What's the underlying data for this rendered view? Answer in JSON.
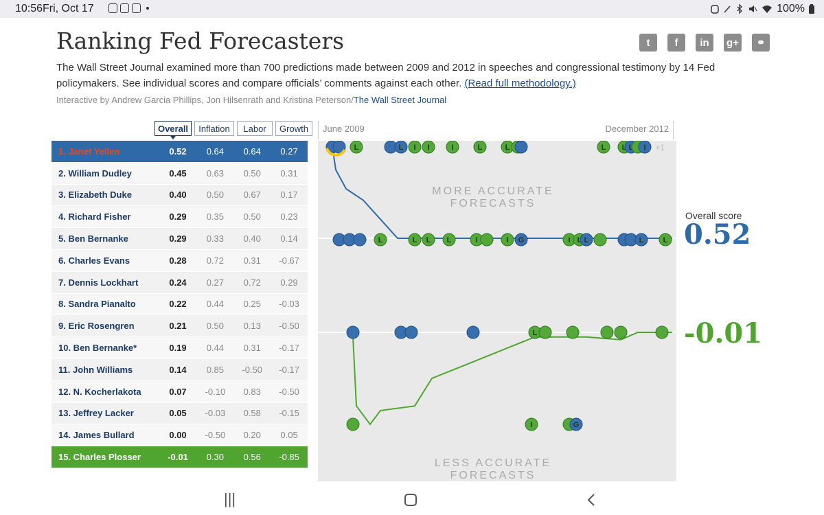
{
  "status": {
    "time": "10:56",
    "date": "Fri, Oct 17",
    "battery": "100%"
  },
  "page": {
    "title": "Ranking Fed Forecasters",
    "intro": "The Wall Street Journal examined more than 700 predictions made between 2009 and 2012 in speeches and congressional testimony by 14 Fed policymakers. See individual scores and compare officials’ comments against each other.",
    "methodology_link": "(Read full methodology.)",
    "credit": "Interactive by Andrew Garcia Phillips, Jon Hilsenrath and Kristina Peterson/",
    "credit_source": "The Wall Street Journal"
  },
  "share": [
    "twitter-icon",
    "facebook-icon",
    "linkedin-icon",
    "google-plus-icon",
    "link-icon"
  ],
  "share_glyphs": [
    "t",
    "f",
    "in",
    "g+",
    "⚭"
  ],
  "tabs": [
    "Overall",
    "Inflation",
    "Labor",
    "Growth"
  ],
  "rankings": [
    {
      "name": "1. Janet Yellen",
      "overall": "0.52",
      "inflation": "0.64",
      "labor": "0.64",
      "growth": "0.27"
    },
    {
      "name": "2. William Dudley",
      "overall": "0.45",
      "inflation": "0.63",
      "labor": "0.50",
      "growth": "0.31"
    },
    {
      "name": "3. Elizabeth Duke",
      "overall": "0.40",
      "inflation": "0.50",
      "labor": "0.67",
      "growth": "0.17"
    },
    {
      "name": "4. Richard Fisher",
      "overall": "0.29",
      "inflation": "0.35",
      "labor": "0.50",
      "growth": "0.23"
    },
    {
      "name": "5. Ben Bernanke",
      "overall": "0.29",
      "inflation": "0.33",
      "labor": "0.40",
      "growth": "0.14"
    },
    {
      "name": "6. Charles Evans",
      "overall": "0.28",
      "inflation": "0.72",
      "labor": "0.31",
      "growth": "-0.67"
    },
    {
      "name": "7. Dennis Lockhart",
      "overall": "0.24",
      "inflation": "0.27",
      "labor": "0.72",
      "growth": "0.29"
    },
    {
      "name": "8. Sandra Pianalto",
      "overall": "0.22",
      "inflation": "0.44",
      "labor": "0.25",
      "growth": "-0.03"
    },
    {
      "name": "9. Eric Rosengren",
      "overall": "0.21",
      "inflation": "0.50",
      "labor": "0.13",
      "growth": "-0.50"
    },
    {
      "name": "10. Ben Bernanke*",
      "overall": "0.19",
      "inflation": "0.44",
      "labor": "0.31",
      "growth": "-0.17"
    },
    {
      "name": "11. John Williams",
      "overall": "0.14",
      "inflation": "0.85",
      "labor": "-0.50",
      "growth": "-0.17"
    },
    {
      "name": "12. N. Kocherlakota",
      "overall": "0.07",
      "inflation": "-0.10",
      "labor": "0.83",
      "growth": "-0.50"
    },
    {
      "name": "13. Jeffrey Lacker",
      "overall": "0.05",
      "inflation": "-0.03",
      "labor": "0.58",
      "growth": "-0.15"
    },
    {
      "name": "14. James Bullard",
      "overall": "0.00",
      "inflation": "-0.50",
      "labor": "0.20",
      "growth": "0.05"
    },
    {
      "name": "15. Charles Plosser",
      "overall": "-0.01",
      "inflation": "0.30",
      "labor": "0.56",
      "growth": "-0.85"
    }
  ],
  "chart": {
    "start_label": "June 2009",
    "end_label": "December 2012",
    "more_accurate": "MORE ACCURATE\nFORECASTS",
    "less_accurate": "LESS ACCURATE\nFORECASTS",
    "overflow_label": "+1",
    "overall_score_label": "Overall score",
    "top_score": "0.52",
    "bottom_score": "-0.01"
  },
  "chart_data": {
    "type": "scatter",
    "time_range": [
      "June 2009",
      "December 2012"
    ],
    "series": [
      {
        "name": "Janet Yellen",
        "color": "#2e69a8",
        "overall": 0.52,
        "line": [
          [
            0,
            1
          ],
          [
            1,
            1
          ],
          [
            2,
            0.88
          ],
          [
            5,
            0.78
          ],
          [
            10,
            0.72
          ],
          [
            15,
            0.62
          ],
          [
            20,
            0.52
          ],
          [
            25,
            0.52
          ],
          [
            50,
            0.52
          ],
          [
            100,
            0.52
          ]
        ],
        "predictions": [
          {
            "t": 1,
            "row": "top",
            "label": "",
            "c": "blue"
          },
          {
            "t": 3,
            "row": "top",
            "label": "",
            "c": "blue"
          },
          {
            "t": 8,
            "row": "top",
            "label": "L",
            "c": "green"
          },
          {
            "t": 18,
            "row": "top",
            "label": "",
            "c": "blue"
          },
          {
            "t": 21,
            "row": "top",
            "label": "L",
            "c": "blue"
          },
          {
            "t": 25,
            "row": "top",
            "label": "I",
            "c": "green"
          },
          {
            "t": 29,
            "row": "top",
            "label": "I",
            "c": "green"
          },
          {
            "t": 36,
            "row": "top",
            "label": "I",
            "c": "green"
          },
          {
            "t": 44,
            "row": "top",
            "label": "L",
            "c": "green"
          },
          {
            "t": 52,
            "row": "top",
            "label": "L",
            "c": "green"
          },
          {
            "t": 55,
            "row": "top",
            "label": "",
            "c": "green"
          },
          {
            "t": 56,
            "row": "top",
            "label": "",
            "c": "blue"
          },
          {
            "t": 80,
            "row": "top",
            "label": "L",
            "c": "green"
          },
          {
            "t": 86,
            "row": "top",
            "label": "L",
            "c": "green"
          },
          {
            "t": 88,
            "row": "top",
            "label": "L",
            "c": "blue"
          },
          {
            "t": 90,
            "row": "top",
            "label": "",
            "c": "green"
          },
          {
            "t": 92,
            "row": "top",
            "label": "I",
            "c": "blue"
          },
          {
            "t": 3,
            "row": "mid",
            "label": "",
            "c": "blue"
          },
          {
            "t": 6,
            "row": "mid",
            "label": "",
            "c": "blue"
          },
          {
            "t": 9,
            "row": "mid",
            "label": "",
            "c": "blue"
          },
          {
            "t": 15,
            "row": "mid",
            "label": "L",
            "c": "green"
          },
          {
            "t": 25,
            "row": "mid",
            "label": "L",
            "c": "green"
          },
          {
            "t": 29,
            "row": "mid",
            "label": "L",
            "c": "green"
          },
          {
            "t": 35,
            "row": "mid",
            "label": "L",
            "c": "green"
          },
          {
            "t": 43,
            "row": "mid",
            "label": "I",
            "c": "green"
          },
          {
            "t": 46,
            "row": "mid",
            "label": "",
            "c": "green"
          },
          {
            "t": 52,
            "row": "mid",
            "label": "I",
            "c": "green"
          },
          {
            "t": 56,
            "row": "mid",
            "label": "G",
            "c": "blue"
          },
          {
            "t": 70,
            "row": "mid",
            "label": "I",
            "c": "green"
          },
          {
            "t": 73,
            "row": "mid",
            "label": "L",
            "c": "green"
          },
          {
            "t": 75,
            "row": "mid",
            "label": "L",
            "c": "blue"
          },
          {
            "t": 79,
            "row": "mid",
            "label": "",
            "c": "green"
          },
          {
            "t": 86,
            "row": "mid",
            "label": "",
            "c": "blue"
          },
          {
            "t": 88,
            "row": "mid",
            "label": "",
            "c": "blue"
          },
          {
            "t": 91,
            "row": "mid",
            "label": "L",
            "c": "blue"
          },
          {
            "t": 98,
            "row": "mid",
            "label": "L",
            "c": "green"
          }
        ]
      },
      {
        "name": "Charles Plosser",
        "color": "#4fa52f",
        "overall": -0.01,
        "line": [
          [
            7,
            -0.05
          ],
          [
            8,
            -0.8
          ],
          [
            12,
            -1
          ],
          [
            15,
            -0.85
          ],
          [
            25,
            -0.8
          ],
          [
            30,
            -0.5
          ],
          [
            40,
            -0.35
          ],
          [
            50,
            -0.2
          ],
          [
            60,
            -0.05
          ],
          [
            75,
            -0.05
          ],
          [
            85,
            -0.08
          ],
          [
            90,
            0
          ],
          [
            100,
            0
          ]
        ],
        "predictions": [
          {
            "t": 7,
            "row": "zero",
            "label": "",
            "c": "blue"
          },
          {
            "t": 21,
            "row": "zero",
            "label": "",
            "c": "blue"
          },
          {
            "t": 24,
            "row": "zero",
            "label": "",
            "c": "blue"
          },
          {
            "t": 42,
            "row": "zero",
            "label": "",
            "c": "blue"
          },
          {
            "t": 60,
            "row": "zero",
            "label": "L",
            "c": "green"
          },
          {
            "t": 63,
            "row": "zero",
            "label": "",
            "c": "green"
          },
          {
            "t": 71,
            "row": "zero",
            "label": "",
            "c": "green"
          },
          {
            "t": 81,
            "row": "zero",
            "label": "",
            "c": "green"
          },
          {
            "t": 85,
            "row": "zero",
            "label": "",
            "c": "green"
          },
          {
            "t": 97,
            "row": "zero",
            "label": "",
            "c": "green"
          },
          {
            "t": 7,
            "row": "low",
            "label": "",
            "c": "green"
          },
          {
            "t": 59,
            "row": "low",
            "label": "I",
            "c": "green"
          },
          {
            "t": 70,
            "row": "low",
            "label": "",
            "c": "green"
          },
          {
            "t": 72,
            "row": "low",
            "label": "G",
            "c": "blue"
          }
        ]
      }
    ]
  }
}
